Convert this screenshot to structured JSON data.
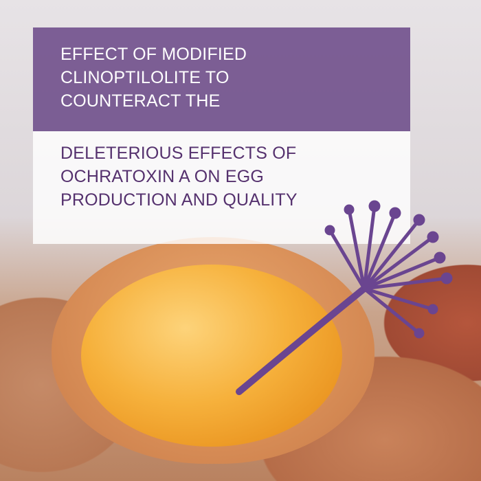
{
  "title_lines_top": [
    "EFFECT OF MODIFIED",
    "CLINOPTILOLITE TO",
    "COUNTERACT THE"
  ],
  "title_lines_bottom": [
    "DELETERIOUS EFFECTS OF",
    "OCHRATOXIN A ON EGG",
    "PRODUCTION AND QUALITY"
  ],
  "colors": {
    "brand_purple": "#70508c",
    "text_purple": "#55316e"
  },
  "icons": [
    "dandelion-logo-icon"
  ]
}
